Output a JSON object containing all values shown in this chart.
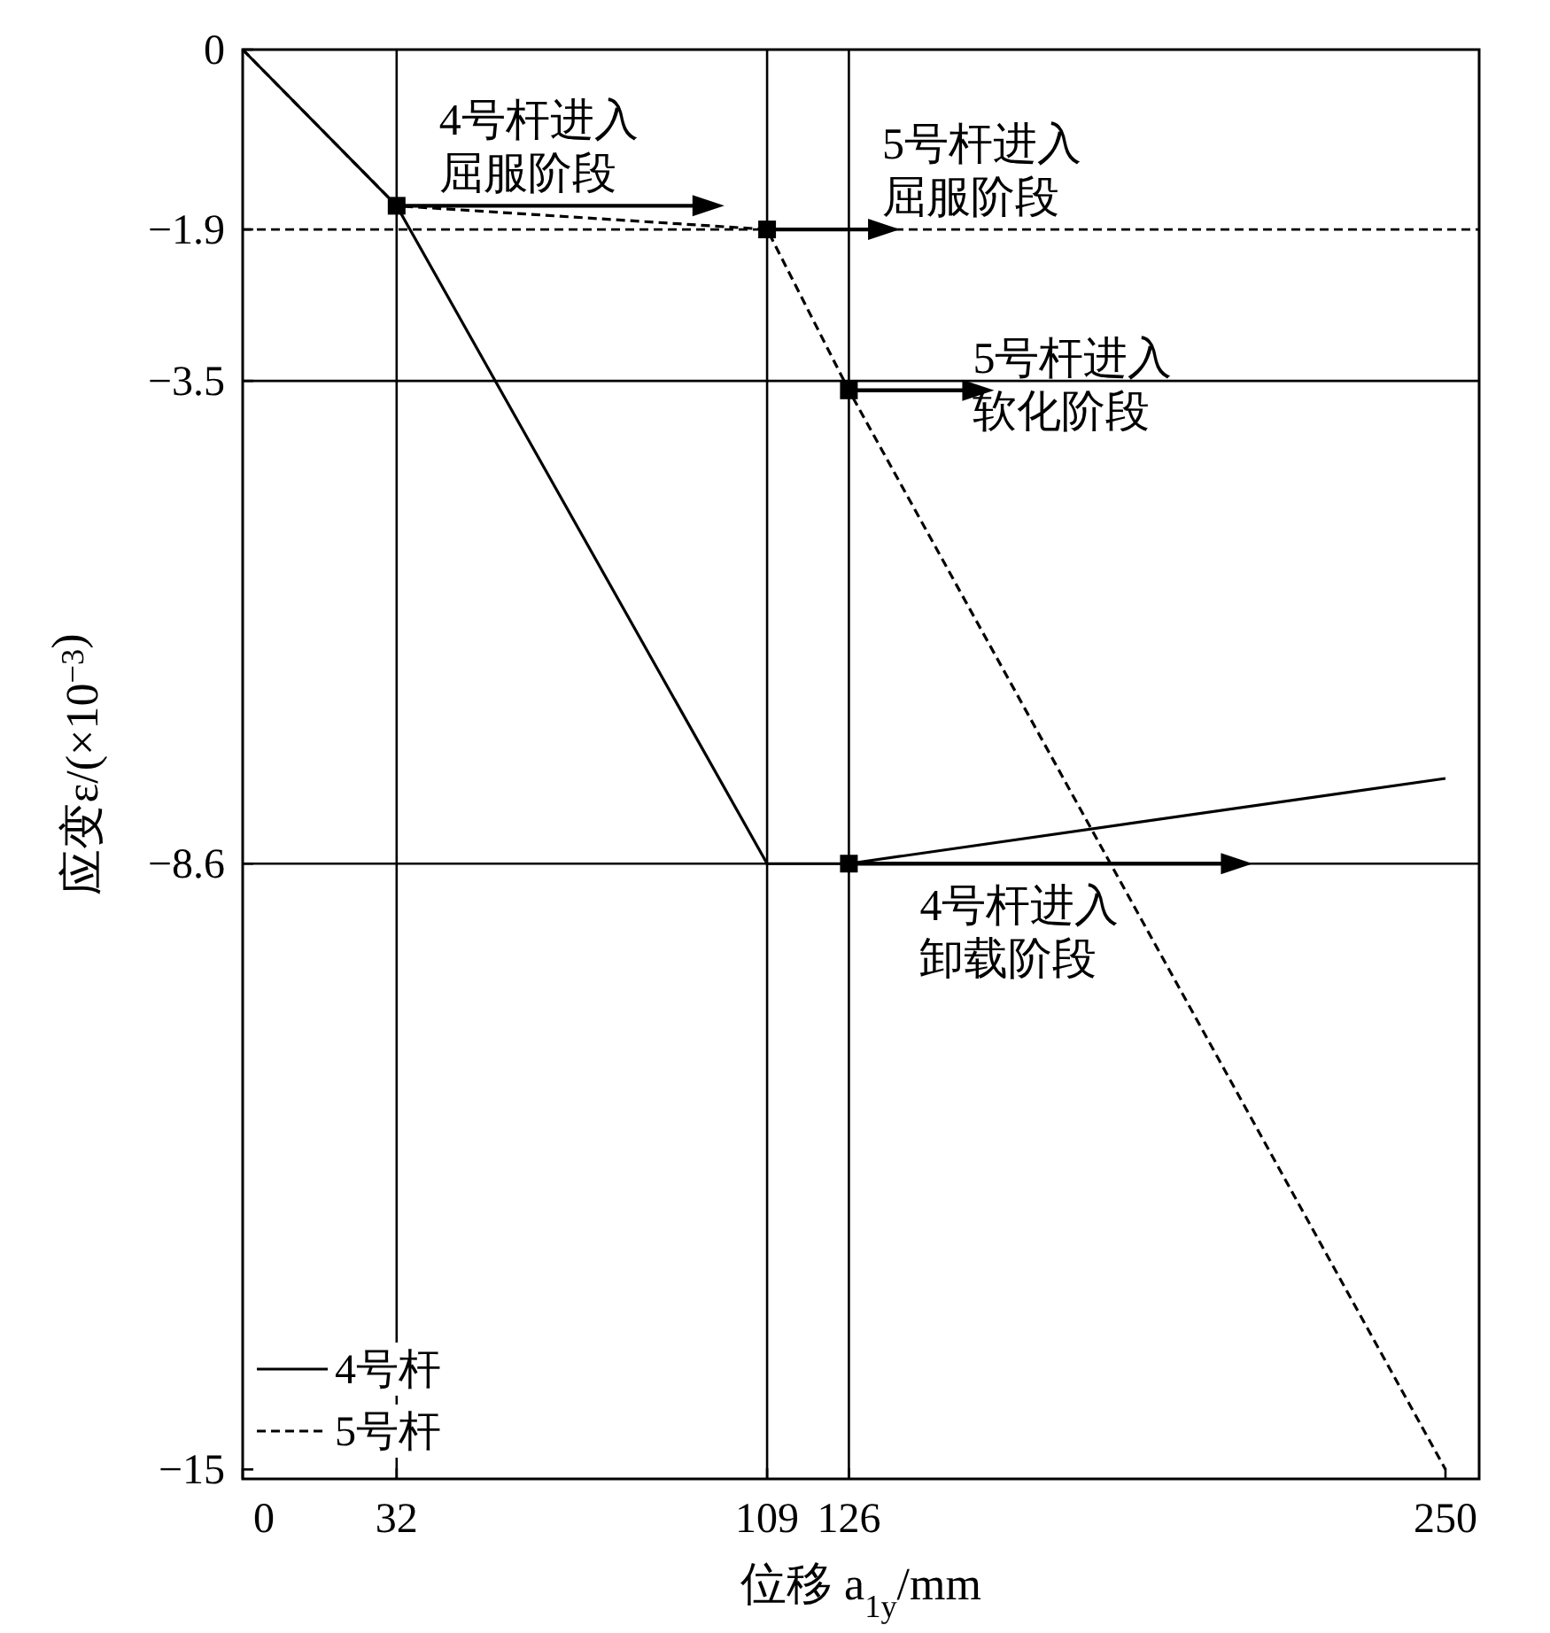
{
  "chart_data": {
    "type": "line",
    "xlabel": "位移 a$_{1y}$/mm",
    "ylabel": "应变ε/(×10$^{−3}$)",
    "xlim": [
      0,
      257
    ],
    "ylim": [
      -15.1,
      0
    ],
    "xticks": [
      0,
      32,
      109,
      126,
      250
    ],
    "yticks": [
      0,
      -1.9,
      -3.5,
      -8.6,
      -15
    ],
    "grid": true,
    "legend": "bottom left",
    "marker": "none",
    "series": [
      {
        "name": "4号杆",
        "color": "#000000",
        "line_style": "solid",
        "x": [
          0,
          32,
          109,
          126,
          250
        ],
        "values": [
          0,
          -1.65,
          -8.6,
          -8.6,
          -7.7
        ]
      },
      {
        "name": "5号杆",
        "color": "#000000",
        "line_style": "dashed",
        "x": [
          0,
          32,
          109,
          126,
          250
        ],
        "values": [
          0,
          -1.65,
          -1.9,
          -3.6,
          -15
        ]
      }
    ],
    "ref_lines": [
      {
        "axis": "y",
        "value": -1.9,
        "line_style": "dashed"
      }
    ],
    "annotations": [
      {
        "text": "4号杆进入屈服阶段",
        "x": 32,
        "y": -1.65
      },
      {
        "text": "5号杆进入屈服阶段",
        "x": 109,
        "y": -1.9
      },
      {
        "text": "5号杆进入软化阶段",
        "x": 126,
        "y": -3.6
      },
      {
        "text": "4号杆进入卸载阶段",
        "x": 126,
        "y": -8.6
      }
    ]
  }
}
